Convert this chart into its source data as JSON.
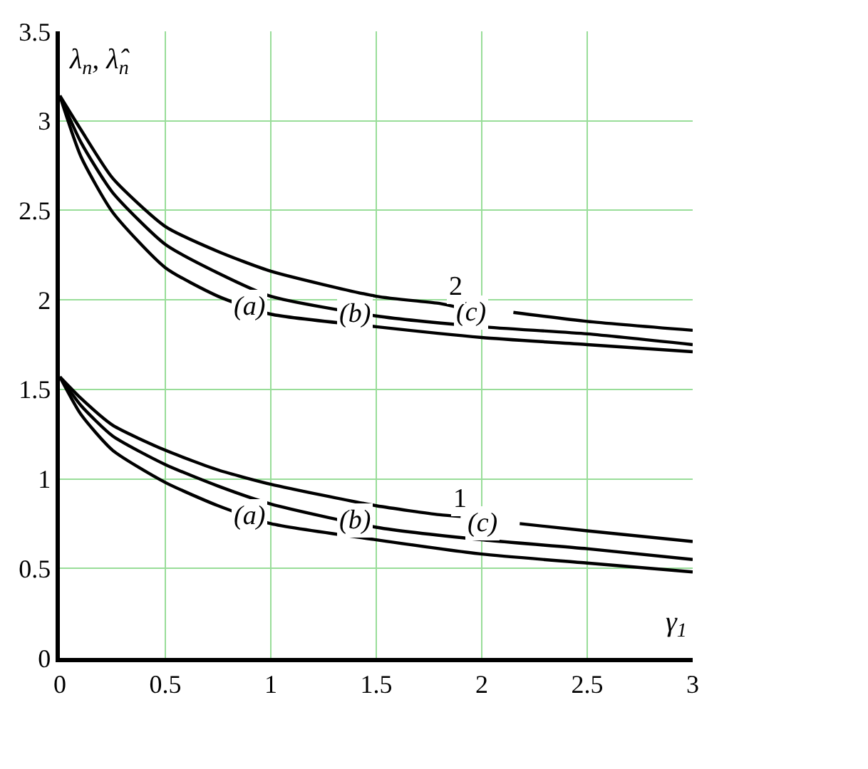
{
  "chart_data": {
    "type": "line",
    "xlabel": "γ$_{1}$",
    "ylabel": "λ$_{n}$, λ̂$_{n}$",
    "x": [
      0,
      0.1,
      0.25,
      0.5,
      0.75,
      1,
      1.5,
      2,
      2.5,
      3
    ],
    "series": [
      {
        "color": "#000000",
        "x": [
          0,
          0.1,
          0.25,
          0.5,
          0.75,
          1,
          1.5,
          1.8,
          1.88,
          2,
          2.15,
          2.5,
          3
        ],
        "values": [
          3.14,
          2.95,
          2.68,
          2.41,
          2.27,
          2.16,
          2.02,
          1.98,
          1.96,
          null,
          1.93,
          1.88,
          1.83
        ]
      },
      {
        "color": "#000000",
        "values": [
          3.14,
          2.88,
          2.6,
          2.31,
          2.15,
          2.02,
          1.91,
          1.85,
          1.81,
          1.75
        ]
      },
      {
        "color": "#000000",
        "values": [
          3.14,
          2.8,
          2.49,
          2.18,
          2.02,
          1.92,
          1.85,
          1.79,
          1.75,
          1.71
        ]
      },
      {
        "color": "#000000",
        "x": [
          0,
          0.1,
          0.25,
          0.5,
          0.75,
          1,
          1.5,
          1.8,
          1.9,
          2,
          2.18,
          2.5,
          3
        ],
        "values": [
          1.57,
          1.45,
          1.3,
          1.16,
          1.05,
          0.97,
          0.85,
          0.8,
          0.79,
          null,
          0.75,
          0.71,
          0.65
        ]
      },
      {
        "color": "#000000",
        "values": [
          1.57,
          1.41,
          1.24,
          1.08,
          0.96,
          0.86,
          0.73,
          0.66,
          0.61,
          0.55
        ]
      },
      {
        "color": "#000000",
        "values": [
          1.57,
          1.36,
          1.16,
          0.98,
          0.85,
          0.75,
          0.66,
          0.58,
          0.53,
          0.48
        ]
      }
    ],
    "annotations": [
      {
        "text": "(a)",
        "x": 0.9,
        "y": 1.96
      },
      {
        "text": "(b)",
        "x": 1.4,
        "y": 1.92
      },
      {
        "text": "(c)",
        "x": 1.95,
        "y": 1.93
      },
      {
        "text": "2",
        "x": 1.88,
        "y": 2.07
      },
      {
        "text": "(a)",
        "x": 0.9,
        "y": 0.79
      },
      {
        "text": "(b)",
        "x": 1.4,
        "y": 0.77
      },
      {
        "text": "(c)",
        "x": 2.0,
        "y": 0.75
      },
      {
        "text": "1",
        "x": 1.9,
        "y": 0.89
      }
    ],
    "xlim": [
      0,
      3
    ],
    "xticks": [
      0,
      0.5,
      1,
      1.5,
      2,
      2.5,
      3
    ],
    "ylim": [
      0,
      3.5
    ],
    "yticks": [
      0,
      0.5,
      1,
      1.5,
      2,
      2.5,
      3,
      3.5
    ],
    "grid": true,
    "line_style": "solid",
    "marker": "none"
  }
}
